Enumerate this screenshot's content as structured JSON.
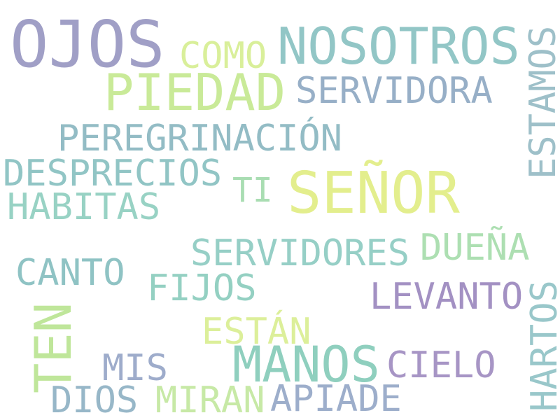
{
  "wordcloud": {
    "words": {
      "ojos": {
        "text": "OJOS",
        "color": "#a09fc6"
      },
      "como": {
        "text": "COMO",
        "color": "#d9ef9a"
      },
      "nosotros": {
        "text": "NOSOTROS",
        "color": "#92c6c6"
      },
      "piedad": {
        "text": "PIEDAD",
        "color": "#c9ea98"
      },
      "servidora": {
        "text": "SERVIDORA",
        "color": "#97afc7"
      },
      "peregrinacion": {
        "text": "PEREGRINACIÓN",
        "color": "#93bcc5"
      },
      "desprecios": {
        "text": "DESPRECIOS",
        "color": "#91c5c5"
      },
      "ti": {
        "text": "TI",
        "color": "#a9ddb2"
      },
      "senor": {
        "text": "SEÑOR",
        "color": "#e3ee8d"
      },
      "habitas": {
        "text": "HABITAS",
        "color": "#98d2c4"
      },
      "servidores": {
        "text": "SERVIDORES",
        "color": "#96cfc6"
      },
      "duena": {
        "text": "DUEÑA",
        "color": "#addfb2"
      },
      "canto": {
        "text": "CANTO",
        "color": "#8fc3c4"
      },
      "fijos": {
        "text": "FIJOS",
        "color": "#94d0c2"
      },
      "levanto": {
        "text": "LEVANTO",
        "color": "#a391c3"
      },
      "estan": {
        "text": "ESTÁN",
        "color": "#dcef9a"
      },
      "mis": {
        "text": "MIS",
        "color": "#9eaccb"
      },
      "manos": {
        "text": "MANOS",
        "color": "#8fcfbe"
      },
      "cielo": {
        "text": "CIELO",
        "color": "#a795c5"
      },
      "dios": {
        "text": "DIOS",
        "color": "#97b7c8"
      },
      "miran": {
        "text": "MIRAN",
        "color": "#c7e9a6"
      },
      "apiade": {
        "text": "APIADE",
        "color": "#9daecb"
      },
      "estamos": {
        "text": "ESTAMOS",
        "color": "#9ec0c9"
      },
      "ten": {
        "text": "TEN",
        "color": "#bfe69a"
      },
      "hartos": {
        "text": "HARTOS",
        "color": "#99c7ca"
      }
    }
  }
}
